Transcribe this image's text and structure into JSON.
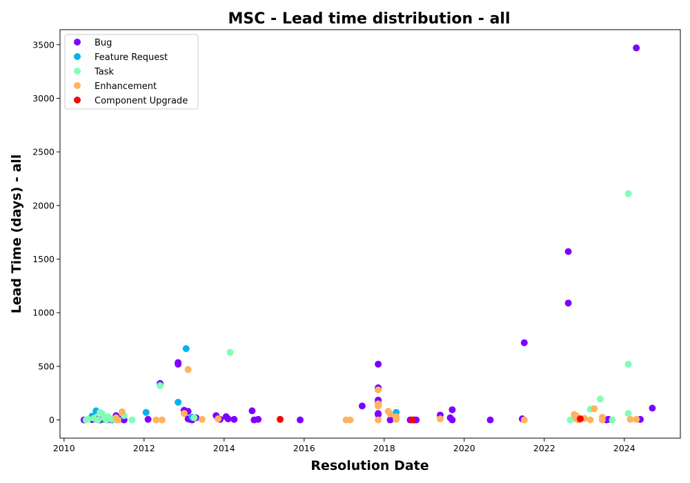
{
  "chart_data": {
    "type": "scatter",
    "title": "MSC - Lead time distribution - all",
    "xlabel": "Resolution Date",
    "ylabel": "Lead Time (days) - all",
    "xlim": [
      2009.9,
      2025.4
    ],
    "ylim": [
      -170,
      3640
    ],
    "xticks": [
      2010,
      2012,
      2014,
      2016,
      2018,
      2020,
      2022,
      2024
    ],
    "yticks": [
      0,
      500,
      1000,
      1500,
      2000,
      2500,
      3000,
      3500
    ],
    "grid": false,
    "legend_position": "top-left",
    "series": [
      {
        "name": "Bug",
        "color": "#8000ff",
        "points": [
          [
            2010.5,
            0
          ],
          [
            2010.7,
            3
          ],
          [
            2010.8,
            10
          ],
          [
            2010.9,
            0
          ],
          [
            2011.0,
            5
          ],
          [
            2011.1,
            2
          ],
          [
            2011.2,
            0
          ],
          [
            2011.3,
            40
          ],
          [
            2011.4,
            10
          ],
          [
            2011.5,
            0
          ],
          [
            2012.1,
            5
          ],
          [
            2012.4,
            330
          ],
          [
            2012.4,
            340
          ],
          [
            2012.85,
            520
          ],
          [
            2012.85,
            535
          ],
          [
            2013.0,
            90
          ],
          [
            2013.1,
            80
          ],
          [
            2013.1,
            10
          ],
          [
            2013.15,
            5
          ],
          [
            2013.2,
            0
          ],
          [
            2013.3,
            20
          ],
          [
            2013.8,
            40
          ],
          [
            2013.9,
            5
          ],
          [
            2014.05,
            30
          ],
          [
            2014.1,
            10
          ],
          [
            2014.25,
            5
          ],
          [
            2014.7,
            85
          ],
          [
            2014.75,
            0
          ],
          [
            2014.85,
            5
          ],
          [
            2015.9,
            0
          ],
          [
            2017.45,
            130
          ],
          [
            2017.85,
            520
          ],
          [
            2017.85,
            300
          ],
          [
            2017.85,
            290
          ],
          [
            2017.85,
            185
          ],
          [
            2017.85,
            160
          ],
          [
            2017.85,
            60
          ],
          [
            2017.85,
            55
          ],
          [
            2017.85,
            50
          ],
          [
            2018.15,
            0
          ],
          [
            2018.65,
            0
          ],
          [
            2018.75,
            0
          ],
          [
            2018.8,
            0
          ],
          [
            2019.4,
            45
          ],
          [
            2019.65,
            20
          ],
          [
            2019.7,
            95
          ],
          [
            2019.7,
            0
          ],
          [
            2020.65,
            0
          ],
          [
            2021.45,
            10
          ],
          [
            2021.5,
            720
          ],
          [
            2022.6,
            1570
          ],
          [
            2022.6,
            1090
          ],
          [
            2023.55,
            0
          ],
          [
            2023.6,
            5
          ],
          [
            2024.3,
            3470
          ],
          [
            2024.4,
            5
          ],
          [
            2024.7,
            110
          ]
        ]
      },
      {
        "name": "Feature Request",
        "color": "#00b5eb",
        "points": [
          [
            2010.7,
            35
          ],
          [
            2010.8,
            85
          ],
          [
            2012.05,
            70
          ],
          [
            2012.85,
            165
          ],
          [
            2013.05,
            665
          ],
          [
            2013.2,
            25
          ],
          [
            2018.3,
            70
          ]
        ]
      },
      {
        "name": "Task",
        "color": "#80ffb4",
        "points": [
          [
            2010.55,
            0
          ],
          [
            2010.6,
            5
          ],
          [
            2010.75,
            15
          ],
          [
            2010.85,
            0
          ],
          [
            2010.9,
            70
          ],
          [
            2010.95,
            60
          ],
          [
            2011.0,
            20
          ],
          [
            2011.05,
            0
          ],
          [
            2011.1,
            30
          ],
          [
            2011.15,
            10
          ],
          [
            2011.2,
            5
          ],
          [
            2011.3,
            0
          ],
          [
            2011.5,
            40
          ],
          [
            2011.7,
            0
          ],
          [
            2012.4,
            320
          ],
          [
            2013.25,
            20
          ],
          [
            2014.15,
            630
          ],
          [
            2022.65,
            0
          ],
          [
            2023.15,
            100
          ],
          [
            2023.4,
            195
          ],
          [
            2023.7,
            0
          ],
          [
            2024.1,
            2110
          ],
          [
            2024.1,
            520
          ],
          [
            2024.1,
            60
          ]
        ]
      },
      {
        "name": "Enhancement",
        "color": "#ffb360",
        "points": [
          [
            2011.3,
            20
          ],
          [
            2011.35,
            0
          ],
          [
            2011.45,
            75
          ],
          [
            2012.3,
            0
          ],
          [
            2012.45,
            0
          ],
          [
            2013.0,
            60
          ],
          [
            2013.1,
            470
          ],
          [
            2013.45,
            5
          ],
          [
            2013.85,
            10
          ],
          [
            2017.05,
            0
          ],
          [
            2017.15,
            0
          ],
          [
            2017.85,
            280
          ],
          [
            2017.85,
            150
          ],
          [
            2017.85,
            130
          ],
          [
            2017.85,
            0
          ],
          [
            2018.1,
            80
          ],
          [
            2018.15,
            55
          ],
          [
            2018.3,
            30
          ],
          [
            2018.3,
            5
          ],
          [
            2019.4,
            10
          ],
          [
            2021.5,
            0
          ],
          [
            2022.75,
            50
          ],
          [
            2022.8,
            40
          ],
          [
            2022.8,
            10
          ],
          [
            2022.85,
            0
          ],
          [
            2023.0,
            15
          ],
          [
            2023.15,
            0
          ],
          [
            2023.25,
            105
          ],
          [
            2023.45,
            25
          ],
          [
            2023.45,
            0
          ],
          [
            2024.15,
            5
          ],
          [
            2024.3,
            5
          ]
        ]
      },
      {
        "name": "Component Upgrade",
        "color": "#ff0000",
        "points": [
          [
            2015.4,
            5
          ],
          [
            2018.7,
            0
          ],
          [
            2022.9,
            10
          ]
        ]
      }
    ]
  }
}
